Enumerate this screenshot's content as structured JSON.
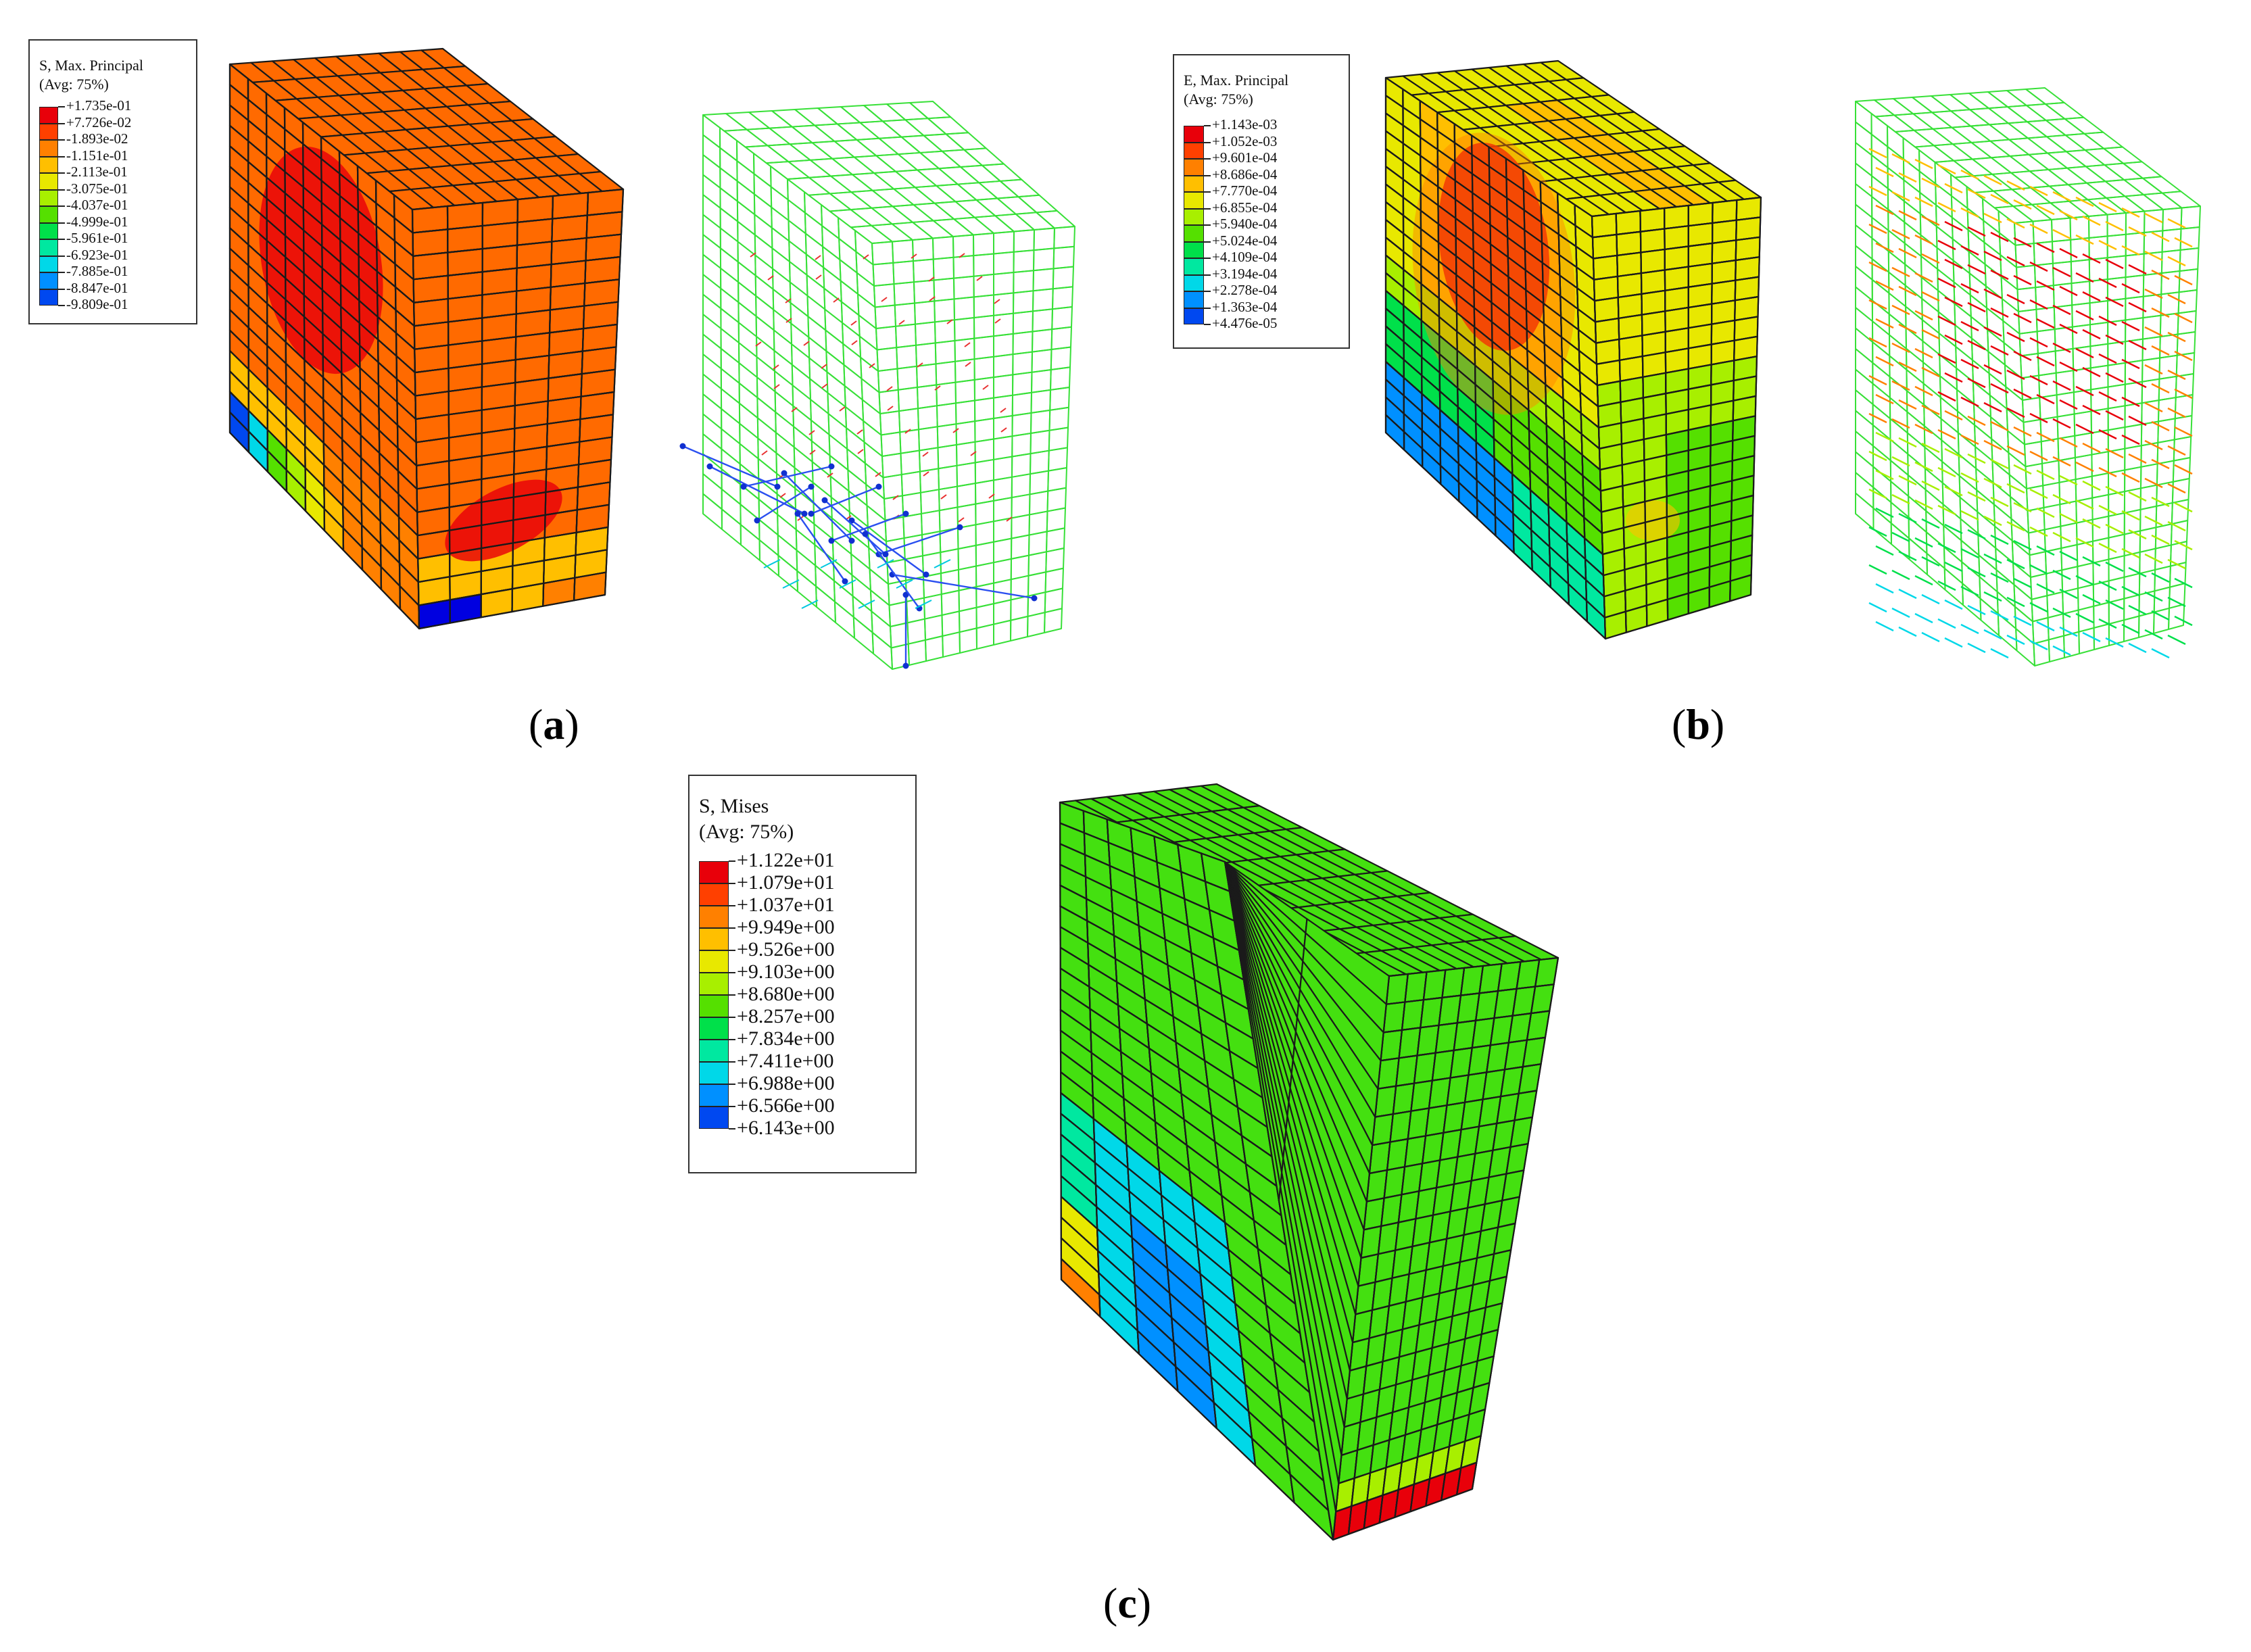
{
  "panels": [
    {
      "id": "a",
      "caption_open": "(",
      "caption_letter": "a",
      "caption_close": ")",
      "legend": {
        "title": "S, Max. Principal",
        "avg": "(Avg: 75%)",
        "values": [
          "+1.735e-01",
          "+7.726e-02",
          "-1.893e-02",
          "-1.151e-01",
          "-2.113e-01",
          "-3.075e-01",
          "-4.037e-01",
          "-4.999e-01",
          "-5.961e-01",
          "-6.923e-01",
          "-7.885e-01",
          "-8.847e-01",
          "-9.809e-01"
        ]
      }
    },
    {
      "id": "b",
      "caption_open": "(",
      "caption_letter": "b",
      "caption_close": ")",
      "legend": {
        "title": "E, Max. Principal",
        "avg": "(Avg: 75%)",
        "values": [
          "+1.143e-03",
          "+1.052e-03",
          "+9.601e-04",
          "+8.686e-04",
          "+7.770e-04",
          "+6.855e-04",
          "+5.940e-04",
          "+5.024e-04",
          "+4.109e-04",
          "+3.194e-04",
          "+2.278e-04",
          "+1.363e-04",
          "+4.476e-05"
        ]
      }
    },
    {
      "id": "c",
      "caption_open": "(",
      "caption_letter": "c",
      "caption_close": ")",
      "legend": {
        "title": "S, Mises",
        "avg": "(Avg: 75%)",
        "values": [
          "+1.122e+01",
          "+1.079e+01",
          "+1.037e+01",
          "+9.949e+00",
          "+9.526e+00",
          "+9.103e+00",
          "+8.680e+00",
          "+8.257e+00",
          "+7.834e+00",
          "+7.411e+00",
          "+6.988e+00",
          "+6.566e+00",
          "+6.143e+00"
        ]
      }
    }
  ],
  "colormap": [
    "#e8000a",
    "#ff4000",
    "#ff8000",
    "#ffbf00",
    "#e8e800",
    "#a8ef00",
    "#55e000",
    "#00e04a",
    "#00e8a0",
    "#00d8e8",
    "#0090ff",
    "#0048f0",
    "#0000e0"
  ]
}
